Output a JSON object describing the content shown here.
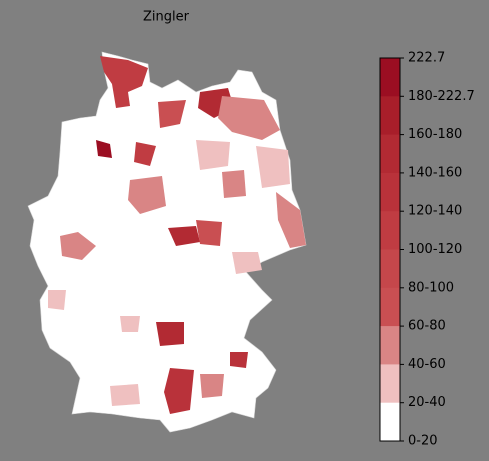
{
  "title": "Zingler",
  "legend": {
    "labels": [
      "222.7",
      "180-222.7",
      "160-180",
      "140-160",
      "120-140",
      "100-120",
      "80-100",
      "60-80",
      "40-60",
      "20-40",
      "0-20"
    ],
    "colors": [
      "#9b0e22",
      "#a81e2a",
      "#b22a33",
      "#b9323a",
      "#c03c42",
      "#c5474b",
      "#c94f52",
      "#d98585",
      "#efc0c0",
      "#ffffff"
    ]
  }
}
